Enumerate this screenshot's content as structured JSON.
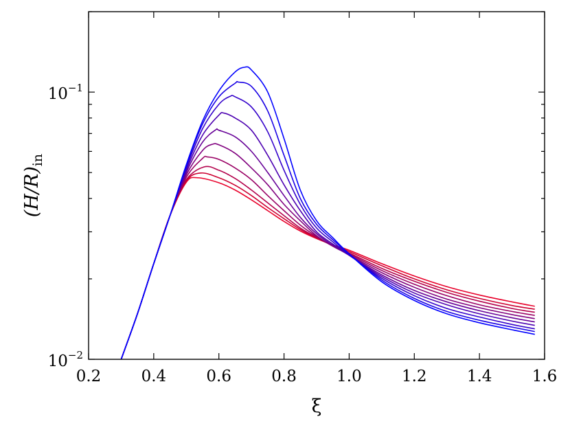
{
  "chart_data": {
    "type": "line",
    "title": "",
    "xlabel": "ξ",
    "ylabel": {
      "main": "(H/R)",
      "subscript": "in"
    },
    "xlim": [
      0.2,
      1.6
    ],
    "ylim": [
      0.01,
      0.2
    ],
    "yscale": "log",
    "grid": false,
    "legend": "none",
    "x_ticks": [
      0.2,
      0.4,
      0.6,
      0.8,
      1.0,
      1.2,
      1.4,
      1.6
    ],
    "x_tick_labels": [
      "0.2",
      "0.4",
      "0.6",
      "0.8",
      "1.0",
      "1.2",
      "1.4",
      "1.6"
    ],
    "y_major_ticks": [
      {
        "value": 0.01,
        "base": "10",
        "exp": "−2"
      },
      {
        "value": 0.1,
        "base": "10",
        "exp": "−1"
      }
    ],
    "color_start": "#0000ff",
    "color_end": "#e8002a",
    "series": [
      {
        "color": "#0000ff",
        "points": [
          [
            0.3,
            0.01
          ],
          [
            0.35,
            0.0148
          ],
          [
            0.4,
            0.0228
          ],
          [
            0.45,
            0.0345
          ],
          [
            0.5,
            0.0535
          ],
          [
            0.55,
            0.078
          ],
          [
            0.6,
            0.101
          ],
          [
            0.65,
            0.119
          ],
          [
            0.68,
            0.124
          ],
          [
            0.7,
            0.121
          ],
          [
            0.75,
            0.1
          ],
          [
            0.8,
            0.067
          ],
          [
            0.85,
            0.043
          ],
          [
            0.9,
            0.033
          ],
          [
            0.95,
            0.0285
          ],
          [
            1.0,
            0.0248
          ],
          [
            1.1,
            0.0195
          ],
          [
            1.2,
            0.0166
          ],
          [
            1.3,
            0.0148
          ],
          [
            1.4,
            0.0137
          ],
          [
            1.5,
            0.0129
          ],
          [
            1.57,
            0.0124
          ]
        ]
      },
      {
        "color": "#1900e4",
        "points": [
          [
            0.3,
            0.01
          ],
          [
            0.35,
            0.0148
          ],
          [
            0.4,
            0.0228
          ],
          [
            0.45,
            0.0345
          ],
          [
            0.5,
            0.053
          ],
          [
            0.55,
            0.076
          ],
          [
            0.6,
            0.096
          ],
          [
            0.65,
            0.108
          ],
          [
            0.66,
            0.109
          ],
          [
            0.7,
            0.105
          ],
          [
            0.75,
            0.085
          ],
          [
            0.8,
            0.058
          ],
          [
            0.85,
            0.04
          ],
          [
            0.9,
            0.032
          ],
          [
            0.95,
            0.028
          ],
          [
            1.0,
            0.0248
          ],
          [
            1.1,
            0.0198
          ],
          [
            1.2,
            0.0169
          ],
          [
            1.3,
            0.0151
          ],
          [
            1.4,
            0.014
          ],
          [
            1.5,
            0.0132
          ],
          [
            1.57,
            0.0127
          ]
        ]
      },
      {
        "color": "#3300ca",
        "points": [
          [
            0.3,
            0.01
          ],
          [
            0.35,
            0.0148
          ],
          [
            0.4,
            0.0228
          ],
          [
            0.45,
            0.0345
          ],
          [
            0.5,
            0.052
          ],
          [
            0.55,
            0.073
          ],
          [
            0.6,
            0.09
          ],
          [
            0.635,
            0.0965
          ],
          [
            0.65,
            0.096
          ],
          [
            0.7,
            0.088
          ],
          [
            0.75,
            0.071
          ],
          [
            0.8,
            0.051
          ],
          [
            0.85,
            0.038
          ],
          [
            0.9,
            0.031
          ],
          [
            0.95,
            0.0275
          ],
          [
            1.0,
            0.0246
          ],
          [
            1.1,
            0.0201
          ],
          [
            1.2,
            0.0173
          ],
          [
            1.3,
            0.0155
          ],
          [
            1.4,
            0.0144
          ],
          [
            1.5,
            0.0135
          ],
          [
            1.57,
            0.013
          ]
        ]
      },
      {
        "color": "#4c00b1",
        "points": [
          [
            0.3,
            0.01
          ],
          [
            0.35,
            0.0148
          ],
          [
            0.4,
            0.0228
          ],
          [
            0.45,
            0.0345
          ],
          [
            0.5,
            0.051
          ],
          [
            0.55,
            0.069
          ],
          [
            0.6,
            0.082
          ],
          [
            0.615,
            0.0835
          ],
          [
            0.65,
            0.08
          ],
          [
            0.7,
            0.072
          ],
          [
            0.75,
            0.058
          ],
          [
            0.8,
            0.045
          ],
          [
            0.85,
            0.036
          ],
          [
            0.9,
            0.03
          ],
          [
            0.95,
            0.027
          ],
          [
            1.0,
            0.0245
          ],
          [
            1.1,
            0.0204
          ],
          [
            1.2,
            0.0177
          ],
          [
            1.3,
            0.016
          ],
          [
            1.4,
            0.0148
          ],
          [
            1.5,
            0.0139
          ],
          [
            1.57,
            0.0134
          ]
        ]
      },
      {
        "color": "#660097",
        "points": [
          [
            0.3,
            0.01
          ],
          [
            0.35,
            0.0148
          ],
          [
            0.4,
            0.0228
          ],
          [
            0.45,
            0.0345
          ],
          [
            0.5,
            0.05
          ],
          [
            0.55,
            0.065
          ],
          [
            0.59,
            0.0722
          ],
          [
            0.6,
            0.072
          ],
          [
            0.65,
            0.068
          ],
          [
            0.7,
            0.06
          ],
          [
            0.75,
            0.05
          ],
          [
            0.8,
            0.041
          ],
          [
            0.85,
            0.034
          ],
          [
            0.9,
            0.0295
          ],
          [
            0.95,
            0.0267
          ],
          [
            1.0,
            0.0245
          ],
          [
            1.1,
            0.0207
          ],
          [
            1.2,
            0.0181
          ],
          [
            1.3,
            0.0164
          ],
          [
            1.4,
            0.0152
          ],
          [
            1.5,
            0.0143
          ],
          [
            1.57,
            0.0138
          ]
        ]
      },
      {
        "color": "#80007e",
        "points": [
          [
            0.3,
            0.01
          ],
          [
            0.35,
            0.0148
          ],
          [
            0.4,
            0.0228
          ],
          [
            0.45,
            0.0345
          ],
          [
            0.5,
            0.049
          ],
          [
            0.55,
            0.0605
          ],
          [
            0.58,
            0.0638
          ],
          [
            0.6,
            0.0635
          ],
          [
            0.65,
            0.059
          ],
          [
            0.7,
            0.052
          ],
          [
            0.75,
            0.045
          ],
          [
            0.8,
            0.038
          ],
          [
            0.85,
            0.033
          ],
          [
            0.9,
            0.029
          ],
          [
            0.95,
            0.0265
          ],
          [
            1.0,
            0.0246
          ],
          [
            1.1,
            0.0211
          ],
          [
            1.2,
            0.0186
          ],
          [
            1.3,
            0.0168
          ],
          [
            1.4,
            0.0156
          ],
          [
            1.5,
            0.0147
          ],
          [
            1.57,
            0.0142
          ]
        ]
      },
      {
        "color": "#990064",
        "points": [
          [
            0.3,
            0.01
          ],
          [
            0.35,
            0.0148
          ],
          [
            0.4,
            0.0228
          ],
          [
            0.45,
            0.0345
          ],
          [
            0.5,
            0.048
          ],
          [
            0.55,
            0.0565
          ],
          [
            0.565,
            0.0572
          ],
          [
            0.6,
            0.056
          ],
          [
            0.65,
            0.052
          ],
          [
            0.7,
            0.047
          ],
          [
            0.75,
            0.041
          ],
          [
            0.8,
            0.036
          ],
          [
            0.85,
            0.0318
          ],
          [
            0.9,
            0.0288
          ],
          [
            0.95,
            0.0265
          ],
          [
            1.0,
            0.0248
          ],
          [
            1.1,
            0.0215
          ],
          [
            1.2,
            0.0191
          ],
          [
            1.3,
            0.0173
          ],
          [
            1.4,
            0.016
          ],
          [
            1.5,
            0.0151
          ],
          [
            1.57,
            0.0146
          ]
        ]
      },
      {
        "color": "#b3004b",
        "points": [
          [
            0.3,
            0.01
          ],
          [
            0.35,
            0.0148
          ],
          [
            0.4,
            0.0228
          ],
          [
            0.45,
            0.0345
          ],
          [
            0.5,
            0.047
          ],
          [
            0.555,
            0.0525
          ],
          [
            0.6,
            0.051
          ],
          [
            0.65,
            0.0475
          ],
          [
            0.7,
            0.043
          ],
          [
            0.75,
            0.0385
          ],
          [
            0.8,
            0.0345
          ],
          [
            0.85,
            0.031
          ],
          [
            0.9,
            0.0286
          ],
          [
            0.95,
            0.0266
          ],
          [
            1.0,
            0.025
          ],
          [
            1.1,
            0.0219
          ],
          [
            1.2,
            0.0196
          ],
          [
            1.3,
            0.0178
          ],
          [
            1.4,
            0.0165
          ],
          [
            1.5,
            0.0155
          ],
          [
            1.57,
            0.015
          ]
        ]
      },
      {
        "color": "#cc0031",
        "points": [
          [
            0.3,
            0.01
          ],
          [
            0.35,
            0.0148
          ],
          [
            0.4,
            0.0228
          ],
          [
            0.45,
            0.0345
          ],
          [
            0.5,
            0.0465
          ],
          [
            0.545,
            0.0498
          ],
          [
            0.6,
            0.0478
          ],
          [
            0.65,
            0.0448
          ],
          [
            0.7,
            0.041
          ],
          [
            0.75,
            0.037
          ],
          [
            0.8,
            0.0336
          ],
          [
            0.85,
            0.0306
          ],
          [
            0.9,
            0.0284
          ],
          [
            0.95,
            0.0267
          ],
          [
            1.0,
            0.0253
          ],
          [
            1.1,
            0.0224
          ],
          [
            1.2,
            0.02
          ],
          [
            1.3,
            0.0182
          ],
          [
            1.4,
            0.0169
          ],
          [
            1.5,
            0.0159
          ],
          [
            1.57,
            0.0154
          ]
        ]
      },
      {
        "color": "#e8002a",
        "points": [
          [
            0.3,
            0.01
          ],
          [
            0.35,
            0.0148
          ],
          [
            0.4,
            0.0228
          ],
          [
            0.45,
            0.0345
          ],
          [
            0.5,
            0.046
          ],
          [
            0.535,
            0.0478
          ],
          [
            0.6,
            0.0458
          ],
          [
            0.65,
            0.043
          ],
          [
            0.7,
            0.0395
          ],
          [
            0.75,
            0.036
          ],
          [
            0.8,
            0.0328
          ],
          [
            0.85,
            0.0302
          ],
          [
            0.9,
            0.0283
          ],
          [
            0.95,
            0.0268
          ],
          [
            1.0,
            0.0256
          ],
          [
            1.1,
            0.0228
          ],
          [
            1.2,
            0.0205
          ],
          [
            1.3,
            0.0187
          ],
          [
            1.4,
            0.0174
          ],
          [
            1.5,
            0.0164
          ],
          [
            1.57,
            0.0158
          ]
        ]
      }
    ]
  }
}
